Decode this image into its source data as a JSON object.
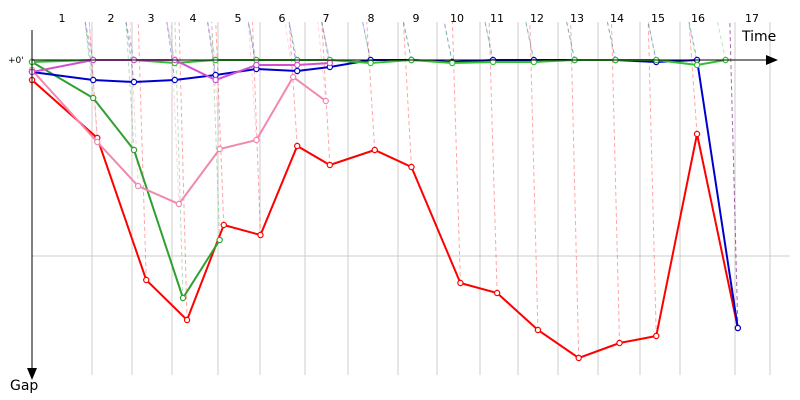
{
  "chart_data": {
    "type": "line",
    "xlabel": "Time",
    "ylabel": "Gap",
    "zero_label": "+0'",
    "lap_labels": [
      "1",
      "2",
      "3",
      "4",
      "5",
      "6",
      "7",
      "8",
      "9",
      "10",
      "11",
      "12",
      "13",
      "14",
      "15",
      "16",
      "17"
    ],
    "ylim": [
      0,
      300
    ],
    "grid": true,
    "series": [
      {
        "color": "#ff0000",
        "points": [
          [
            0,
            20
          ],
          [
            1.6,
            78
          ],
          [
            2.8,
            220
          ],
          [
            3.8,
            260
          ],
          [
            4.7,
            165
          ],
          [
            5.6,
            175
          ],
          [
            6.5,
            86
          ],
          [
            7.3,
            105
          ],
          [
            8.4,
            90
          ],
          [
            9.3,
            107
          ],
          [
            10.5,
            223
          ],
          [
            11.4,
            233
          ],
          [
            12.4,
            270
          ],
          [
            13.4,
            298
          ],
          [
            14.4,
            283
          ],
          [
            15.3,
            276
          ],
          [
            16.3,
            74
          ],
          [
            17.3,
            268
          ]
        ]
      },
      {
        "color": "#30a030",
        "points": [
          [
            0,
            2
          ],
          [
            1.5,
            38
          ],
          [
            2.5,
            90
          ],
          [
            3.7,
            238
          ],
          [
            4.6,
            180
          ]
        ]
      },
      {
        "color": "#f088b0",
        "points": [
          [
            0,
            10
          ],
          [
            1.6,
            82
          ],
          [
            2.6,
            126
          ],
          [
            3.6,
            144
          ],
          [
            4.6,
            89
          ],
          [
            5.5,
            80
          ],
          [
            6.4,
            17
          ],
          [
            7.2,
            41
          ]
        ]
      },
      {
        "color": "#0000cc",
        "points": [
          [
            0,
            12
          ],
          [
            1.5,
            20
          ],
          [
            2.5,
            22
          ],
          [
            3.5,
            20
          ],
          [
            4.5,
            15
          ],
          [
            5.5,
            9
          ],
          [
            6.5,
            11
          ],
          [
            7.3,
            7
          ],
          [
            8.3,
            0
          ],
          [
            9.3,
            0
          ],
          [
            10.3,
            2
          ],
          [
            11.3,
            0
          ],
          [
            12.3,
            0
          ],
          [
            13.3,
            0
          ],
          [
            14.3,
            0
          ],
          [
            15.3,
            2
          ],
          [
            16.3,
            0
          ],
          [
            17.3,
            268
          ]
        ]
      },
      {
        "color": "#30c030",
        "points": [
          [
            0,
            2
          ],
          [
            1.5,
            0
          ],
          [
            2.5,
            0
          ],
          [
            3.5,
            3
          ],
          [
            4.5,
            0
          ],
          [
            5.5,
            0
          ],
          [
            6.5,
            0
          ],
          [
            7.3,
            0
          ],
          [
            8.3,
            3
          ],
          [
            9.3,
            0
          ],
          [
            10.3,
            3
          ],
          [
            11.3,
            2
          ],
          [
            12.3,
            2
          ],
          [
            13.3,
            0
          ],
          [
            14.3,
            0
          ],
          [
            15.3,
            0
          ],
          [
            16.3,
            5
          ],
          [
            17.0,
            0
          ]
        ]
      },
      {
        "color": "#d050d0",
        "points": [
          [
            0,
            12
          ],
          [
            1.5,
            0
          ],
          [
            2.5,
            0
          ],
          [
            3.5,
            0
          ],
          [
            4.5,
            20
          ],
          [
            5.5,
            5
          ],
          [
            6.5,
            5
          ],
          [
            7.3,
            3
          ]
        ]
      }
    ]
  }
}
